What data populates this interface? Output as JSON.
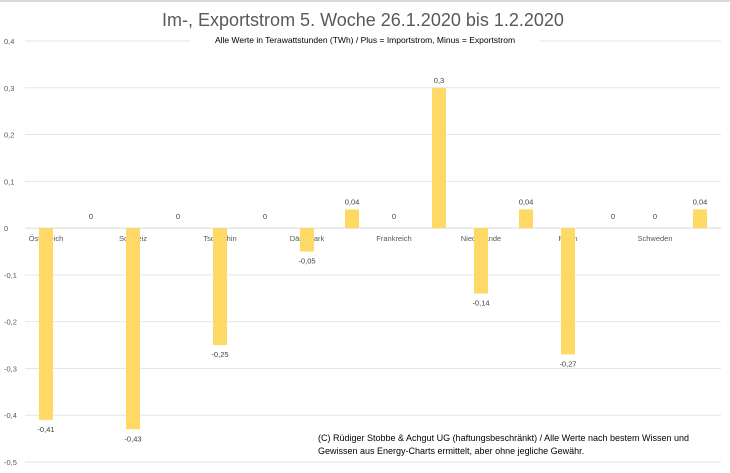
{
  "chart_data": {
    "type": "bar",
    "title": "Im-, Exportstrom 5. Woche 26.1.2020 bis 1.2.2020",
    "subtitle": "Alle Werte in Terawattstunden (TWh) / Plus = Importstrom, Minus = Exportstrom",
    "categories": [
      "Österreich",
      "Schweiz",
      "Tschechin",
      "Dänemark",
      "Frankreich",
      "Niederlande",
      "Polen",
      "Schweden"
    ],
    "series": [
      {
        "values": [
          -0.41,
          -0.43,
          -0.25,
          -0.05,
          0,
          -0.14,
          -0.27,
          0
        ]
      },
      {
        "values": [
          0,
          0,
          0,
          0.04,
          0.3,
          0.04,
          0,
          0.04
        ]
      }
    ],
    "ylim": [
      -0.5,
      0.4
    ],
    "yticks": [
      0.4,
      0.3,
      0.2,
      0.1,
      0,
      -0.1,
      -0.2,
      -0.3,
      -0.4,
      -0.5
    ],
    "grid": true,
    "legend": "none",
    "bar_color": "#ffd966",
    "decimal_separator": ",",
    "annotation": [
      "(C) Rüdiger Stobbe & Achgut UG (haftungsbeschränkt) / Alle Werte nach bestem Wissen und",
      "Gewissen aus Energy-Charts ermittelt, aber ohne jegliche Gewähr."
    ]
  }
}
